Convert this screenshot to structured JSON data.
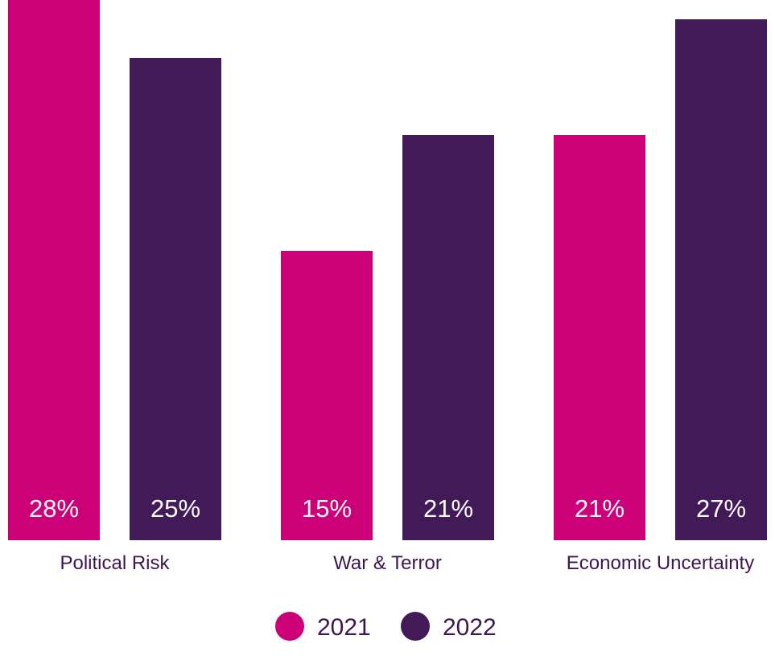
{
  "chart_data": {
    "type": "bar",
    "title": "",
    "xlabel": "",
    "ylabel": "",
    "categories": [
      "Political Risk",
      "War & Terror",
      "Economic Uncertainty"
    ],
    "series": [
      {
        "name": "2021",
        "color": "#cc0077",
        "values": [
          28,
          15,
          21
        ],
        "labels": [
          "28%",
          "15%",
          "21%"
        ]
      },
      {
        "name": "2022",
        "color": "#421a58",
        "values": [
          25,
          21,
          27
        ],
        "labels": [
          "25%",
          "21%",
          "27%"
        ]
      }
    ],
    "ylim": [
      0,
      28
    ],
    "grid": false,
    "legend": "bottom-center"
  }
}
